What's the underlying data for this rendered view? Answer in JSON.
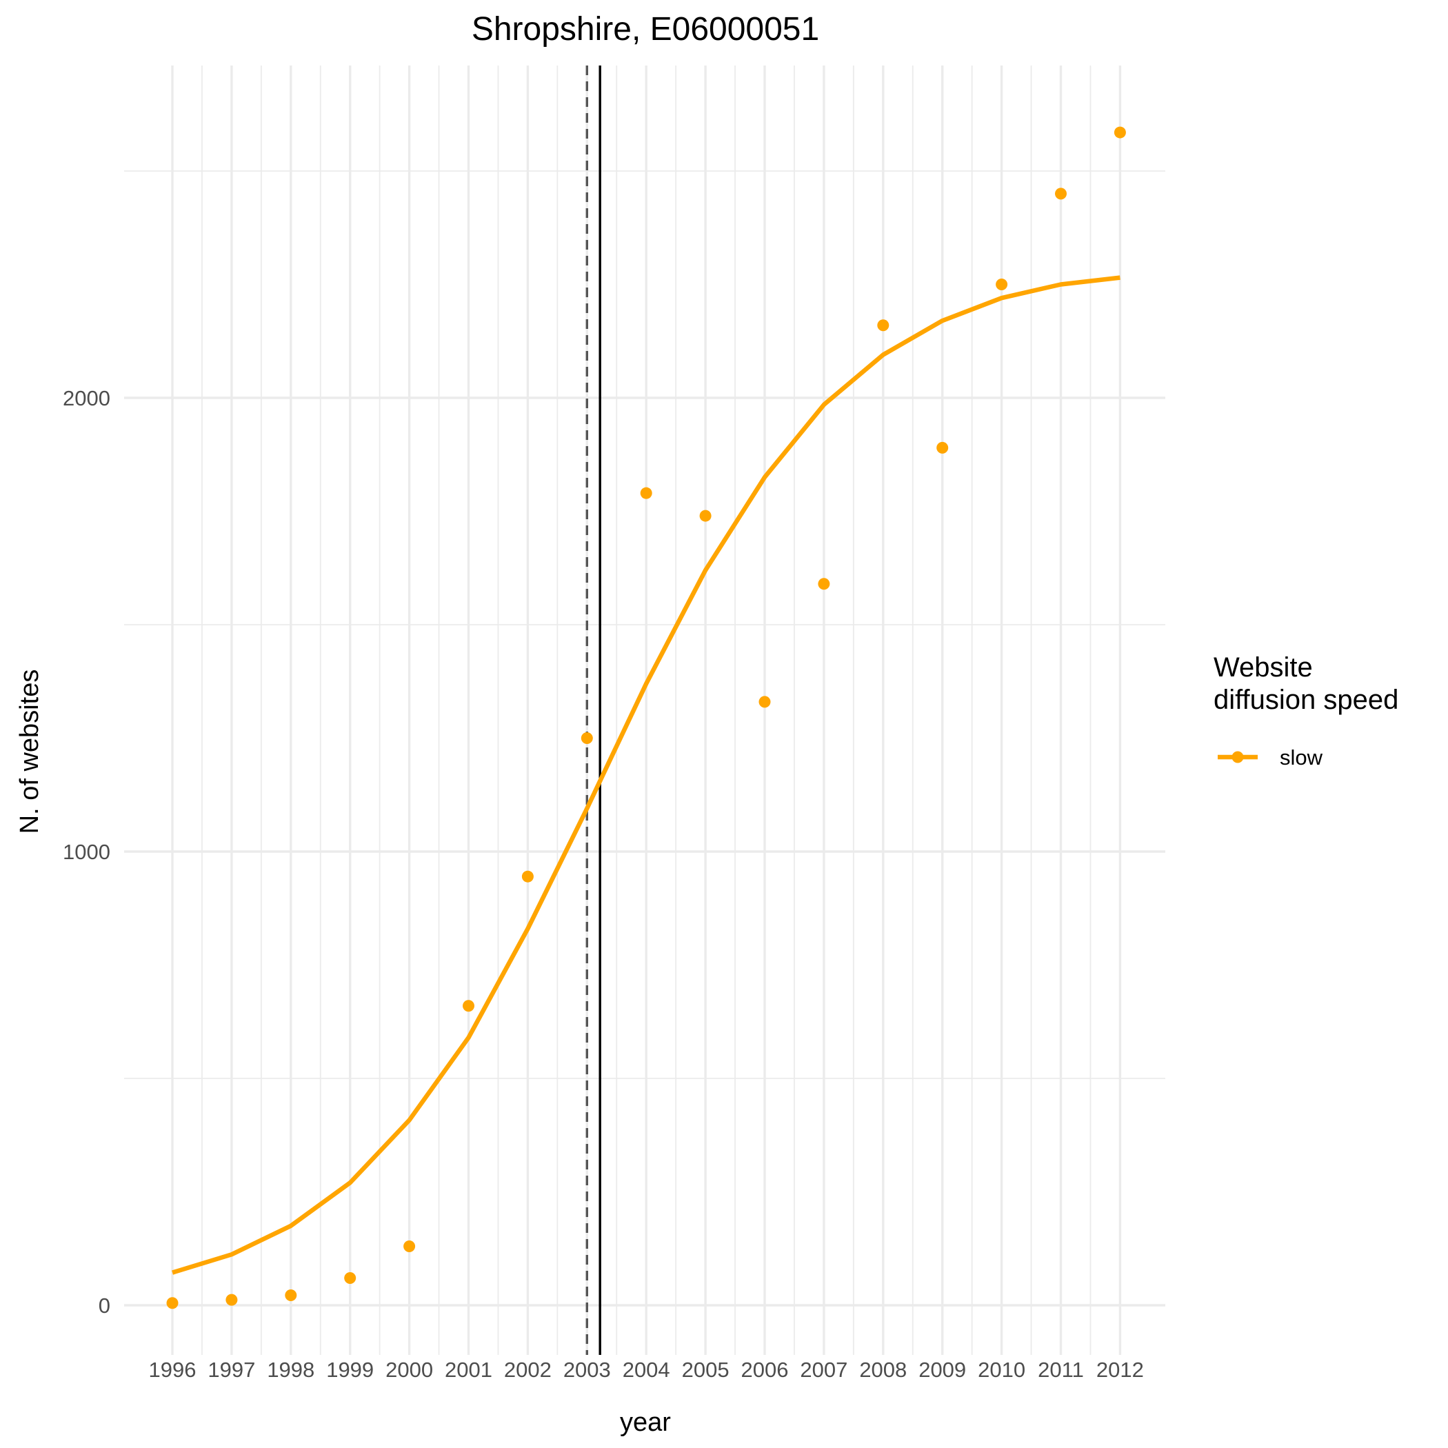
{
  "chart_data": {
    "type": "line",
    "title": "Shropshire, E06000051",
    "xlabel": "year",
    "ylabel": "N. of websites",
    "x": [
      1996,
      1997,
      1998,
      1999,
      2000,
      2001,
      2002,
      2003,
      2004,
      2005,
      2006,
      2007,
      2008,
      2009,
      2010,
      2011,
      2012
    ],
    "x_tick_labels": [
      "1996",
      "1997",
      "1998",
      "1999",
      "2000",
      "2001",
      "2002",
      "2003",
      "2004",
      "2005",
      "2006",
      "2007",
      "2008",
      "2009",
      "2010",
      "2011",
      "2012"
    ],
    "y_ticks": [
      0,
      1000,
      2000
    ],
    "y_tick_labels": [
      "0",
      "1000",
      "2000"
    ],
    "ylim": [
      -115,
      2730
    ],
    "grid": true,
    "series": [
      {
        "name": "slow",
        "kind": "points",
        "color": "#FFA500",
        "values": [
          5,
          12,
          22,
          60,
          130,
          660,
          945,
          1250,
          1790,
          1740,
          1330,
          1590,
          2160,
          1890,
          2250,
          2450,
          2585
        ]
      },
      {
        "name": "slow",
        "kind": "line",
        "color": "#FFA500",
        "values": [
          72,
          112,
          175,
          270,
          408,
          590,
          830,
          1095,
          1370,
          1620,
          1825,
          1985,
          2095,
          2170,
          2220,
          2250,
          2265
        ]
      }
    ],
    "vlines": [
      {
        "x": 2003.0,
        "style": "dashed",
        "color": "#555555"
      },
      {
        "x": 2003.22,
        "style": "solid",
        "color": "#000000"
      }
    ],
    "legend": {
      "title_lines": [
        "Website",
        "diffusion speed"
      ],
      "entries": [
        {
          "label": "slow",
          "color": "#FFA500"
        }
      ],
      "placement": "right"
    }
  }
}
